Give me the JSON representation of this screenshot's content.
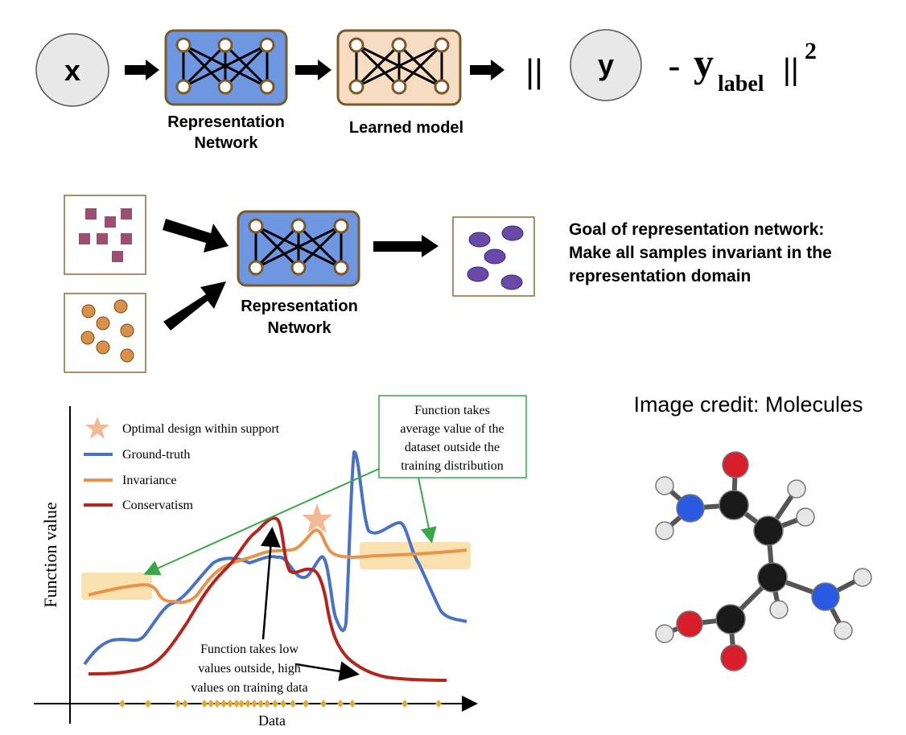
{
  "top": {
    "x_label": "x",
    "y_label": "y",
    "norm_open": "||",
    "minus": "-",
    "y_label_main": "y",
    "y_label_sub": "label",
    "norm_close": "||",
    "exponent": "2",
    "rep_net_label_line1": "Representation",
    "rep_net_label_line2": "Network",
    "learned_model_label": "Learned model"
  },
  "middle": {
    "rep_net_label_line1": "Representation",
    "rep_net_label_line2": "Network",
    "goal_line1": "Goal of representation network:",
    "goal_line2": "Make all samples invariant in the",
    "goal_line3": "representation domain"
  },
  "chart": {
    "ylabel": "Function value",
    "xlabel": "Data",
    "legend": [
      {
        "label": "Optimal design within support",
        "color": "#f4b994",
        "symbol": "star"
      },
      {
        "label": "Ground-truth",
        "color": "#4a72c4",
        "symbol": "line"
      },
      {
        "label": "Invariance",
        "color": "#e8924a",
        "symbol": "line"
      },
      {
        "label": "Conservatism",
        "color": "#b3261e",
        "symbol": "line"
      }
    ],
    "callout_line1": "Function takes",
    "callout_line2": "average value of the",
    "callout_line3": "dataset outside the",
    "callout_line4": "training distribution",
    "note_line1": "Function takes low",
    "note_line2": "values outside, high",
    "note_line3": "values on training data"
  },
  "credit": {
    "text": "Image credit: Molecules"
  },
  "colors": {
    "rep_net_fill": "#6f96e0",
    "learned_model_fill": "#f6dcc3",
    "box_border": "#7b5a2a",
    "square_fill": "#9c4d72",
    "circle_fill": "#d8914a",
    "ellipse_fill": "#6a4aa8",
    "highlight": "#f8dfa6",
    "callout_border": "#3aa64a"
  }
}
